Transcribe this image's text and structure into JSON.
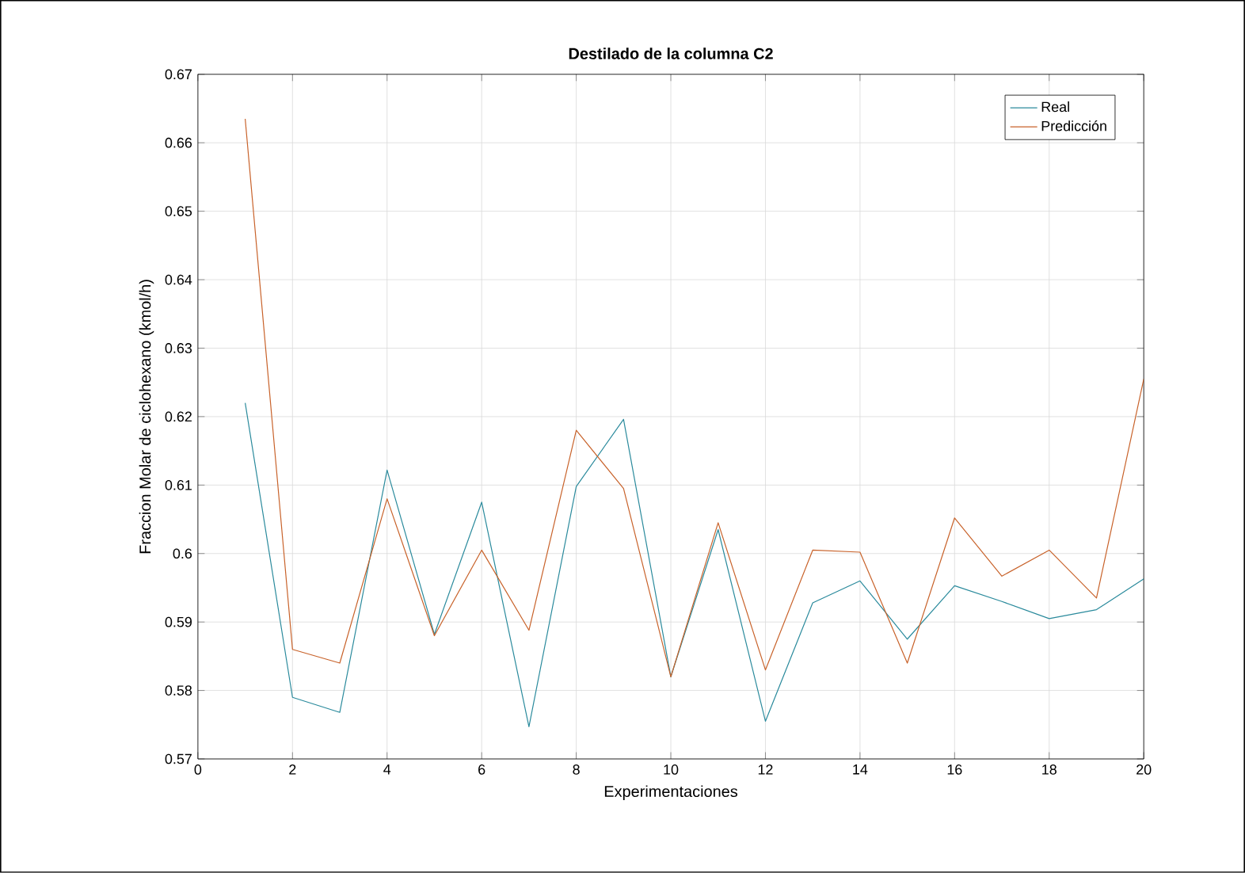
{
  "chart_data": {
    "type": "line",
    "title": "Destilado de la columna C2",
    "xlabel": "Experimentaciones",
    "ylabel": "Fraccion Molar de ciclohexano (kmol/h)",
    "x": [
      1,
      2,
      3,
      4,
      5,
      6,
      7,
      8,
      9,
      10,
      11,
      12,
      13,
      14,
      15,
      16,
      17,
      18,
      19,
      20
    ],
    "series": [
      {
        "name": "Real",
        "color": "#2a8a9c",
        "values": [
          0.622,
          0.579,
          0.5768,
          0.6122,
          0.5882,
          0.6075,
          0.5747,
          0.6098,
          0.6196,
          0.582,
          0.6035,
          0.5755,
          0.5928,
          0.596,
          0.5875,
          0.5953,
          0.593,
          0.5905,
          0.5918,
          0.5963
        ]
      },
      {
        "name": "Predicción",
        "color": "#c8622a",
        "values": [
          0.6635,
          0.586,
          0.584,
          0.608,
          0.588,
          0.6005,
          0.5888,
          0.618,
          0.6095,
          0.582,
          0.6045,
          0.583,
          0.6005,
          0.6002,
          0.584,
          0.6052,
          0.5967,
          0.6005,
          0.5935,
          0.6255
        ]
      }
    ],
    "xlim": [
      0,
      20
    ],
    "xticks": [
      0,
      2,
      4,
      6,
      8,
      10,
      12,
      14,
      16,
      18,
      20
    ],
    "ylim": [
      0.57,
      0.67
    ],
    "yticks": [
      0.57,
      0.58,
      0.59,
      0.6,
      0.61,
      0.62,
      0.63,
      0.64,
      0.65,
      0.66,
      0.67
    ],
    "grid": true,
    "legend": "top right",
    "marker": "none",
    "line_style": "solid"
  }
}
